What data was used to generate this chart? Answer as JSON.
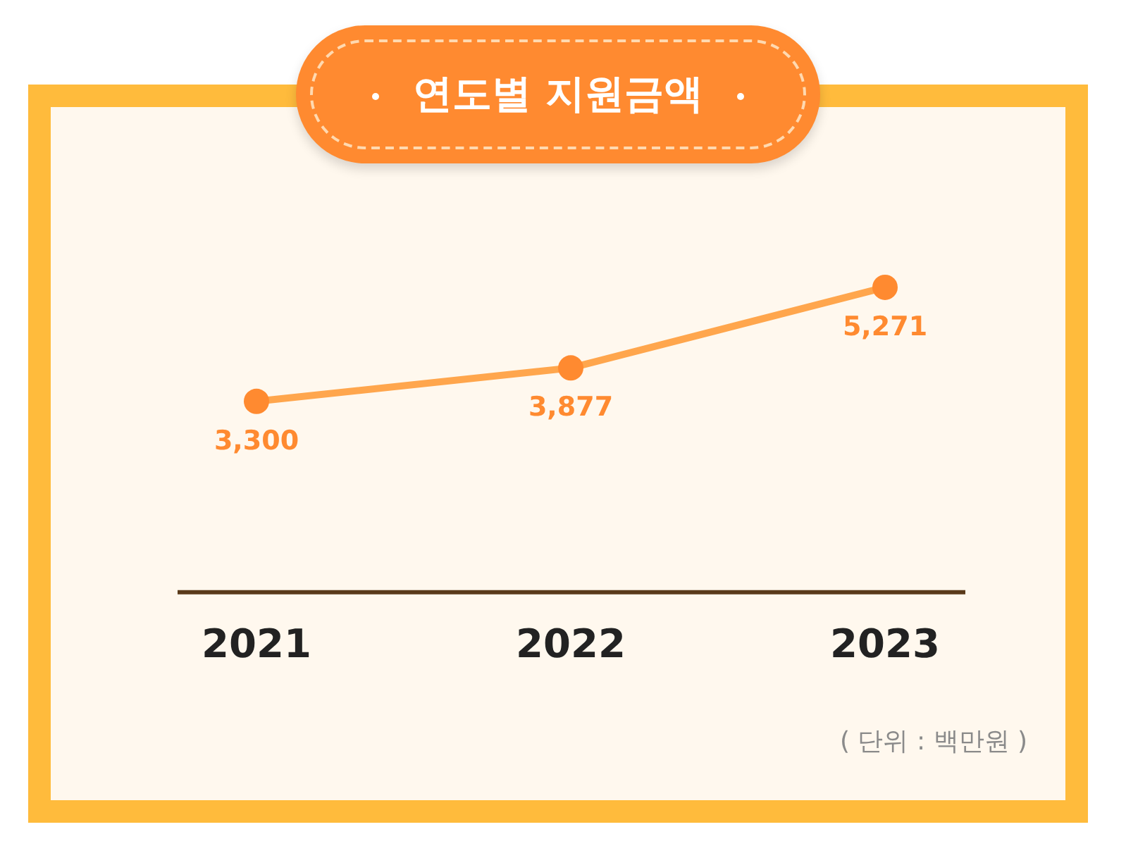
{
  "chart_data": {
    "type": "line",
    "title": "연도별 지원금액",
    "categories": [
      "2021",
      "2022",
      "2023"
    ],
    "series": [
      {
        "color": "#ffa64d",
        "values": [
          3300,
          3877,
          5271
        ],
        "value_labels": [
          "3,300",
          "3,877",
          "5,271"
        ]
      }
    ],
    "marker": "circle",
    "line_style": "solid",
    "legend": false,
    "tick_labels": "x",
    "annotations": [
      "( 단위 : 백만원 )"
    ]
  }
}
